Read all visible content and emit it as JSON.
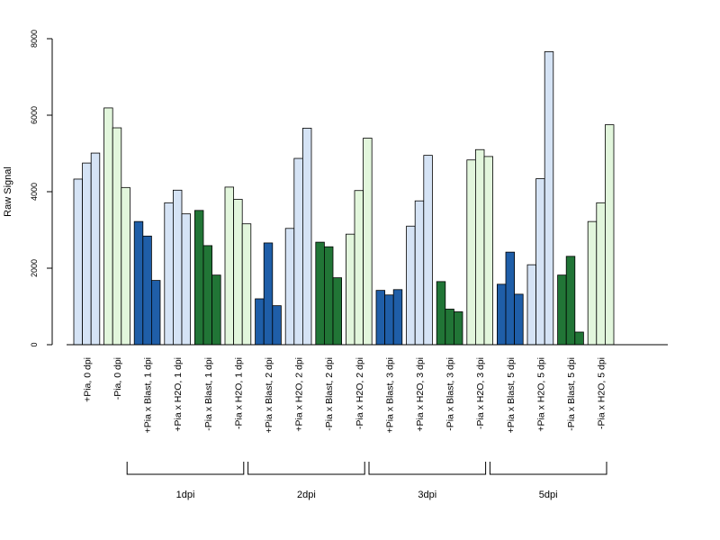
{
  "chart_data": {
    "type": "bar",
    "ylabel": "Raw Signal",
    "xlabel": "",
    "title": "",
    "ylim": [
      0,
      8000
    ],
    "yticks": [
      0,
      2000,
      4000,
      6000,
      8000
    ],
    "grid": false,
    "colors": {
      "light_blue": "#d5e3f5",
      "light_green": "#e2f6dc",
      "dark_blue": "#1f5ea8",
      "dark_green": "#217536"
    },
    "categories": [
      "+Pia, 0 dpi",
      "-Pia, 0 dpi",
      "+Pia x Blast, 1 dpi",
      "+Pia x H2O, 1 dpi",
      "-Pia x Blast, 1 dpi",
      "-Pia x H2O, 1 dpi",
      "+Pia x Blast, 2 dpi",
      "+Pia x H2O, 2 dpi",
      "-Pia x Blast, 2 dpi",
      "-Pia x H2O, 2 dpi",
      "+Pia x Blast, 3 dpi",
      "+Pia x H2O, 3 dpi",
      "-Pia x Blast, 3 dpi",
      "-Pia x H2O, 3 dpi",
      "+Pia x Blast, 5 dpi",
      "+Pia x H2O, 5 dpi",
      "-Pia x Blast, 5 dpi",
      "-Pia x H2O, 5 dpi"
    ],
    "category_colors": [
      "light_blue",
      "light_green",
      "dark_blue",
      "light_blue",
      "dark_green",
      "light_green",
      "dark_blue",
      "light_blue",
      "dark_green",
      "light_green",
      "dark_blue",
      "light_blue",
      "dark_green",
      "light_green",
      "dark_blue",
      "light_blue",
      "dark_green",
      "light_green"
    ],
    "values": [
      [
        4330,
        4750,
        5010
      ],
      [
        6190,
        5670,
        4110
      ],
      [
        3220,
        2840,
        1680
      ],
      [
        3710,
        4040,
        3420
      ],
      [
        3510,
        2590,
        1820
      ],
      [
        4120,
        3800,
        3160
      ],
      [
        1200,
        2660,
        1020
      ],
      [
        3040,
        4870,
        5660
      ],
      [
        2680,
        2560,
        1750
      ],
      [
        2890,
        4030,
        5400
      ],
      [
        1420,
        1300,
        1440
      ],
      [
        3100,
        3760,
        4950
      ],
      [
        1650,
        930,
        860
      ],
      [
        4830,
        5100,
        4920
      ],
      [
        1580,
        2420,
        1320
      ],
      [
        2090,
        4340,
        7660
      ],
      [
        1820,
        2310,
        330
      ],
      [
        3220,
        3710,
        5750
      ]
    ],
    "group_brackets": [
      {
        "label": "1dpi",
        "from": 2,
        "to": 5
      },
      {
        "label": "2dpi",
        "from": 6,
        "to": 9
      },
      {
        "label": "3dpi",
        "from": 10,
        "to": 13
      },
      {
        "label": "5dpi",
        "from": 14,
        "to": 17
      }
    ]
  }
}
